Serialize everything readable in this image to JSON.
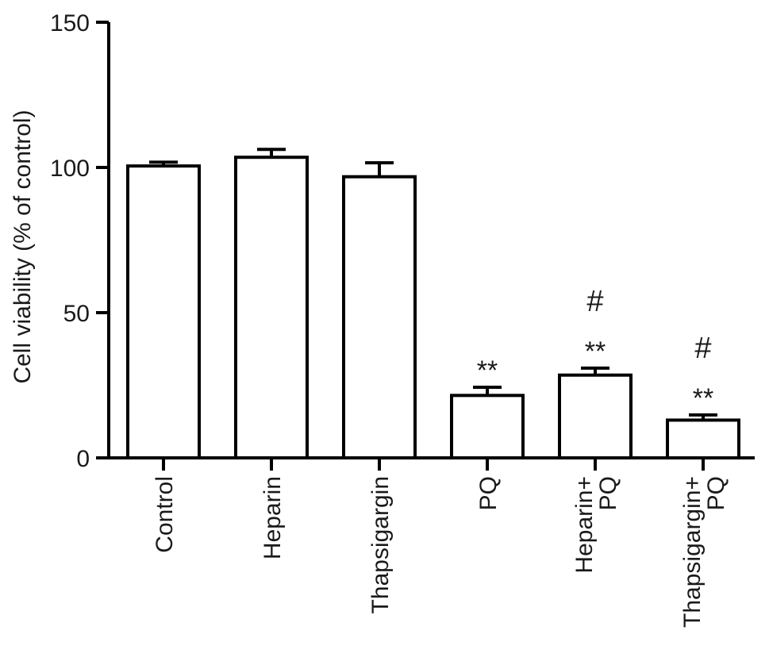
{
  "chart_data": {
    "type": "bar",
    "title": "",
    "xlabel": "",
    "ylabel": "Cell viability (% of control)",
    "ylim": [
      0,
      150
    ],
    "yticks": [
      0,
      50,
      100,
      150
    ],
    "grid": false,
    "categories": [
      [
        "Control"
      ],
      [
        "Heparin"
      ],
      [
        "Thapsigargin"
      ],
      [
        "PQ"
      ],
      [
        "Heparin+",
        "PQ"
      ],
      [
        "Thapsigargin+",
        "PQ"
      ]
    ],
    "values": [
      100.5,
      103.5,
      96.8,
      21.5,
      28.5,
      13.0
    ],
    "errors": [
      1.3,
      2.7,
      4.8,
      2.8,
      2.4,
      1.8
    ],
    "annotations": [
      {
        "category_index": 3,
        "lines": [
          "**"
        ]
      },
      {
        "category_index": 4,
        "lines": [
          "#",
          "**"
        ]
      },
      {
        "category_index": 5,
        "lines": [
          "#",
          "**"
        ]
      }
    ],
    "colors": {
      "bar_fill": "#ffffff",
      "bar_stroke": "#000000",
      "axis": "#000000"
    }
  }
}
